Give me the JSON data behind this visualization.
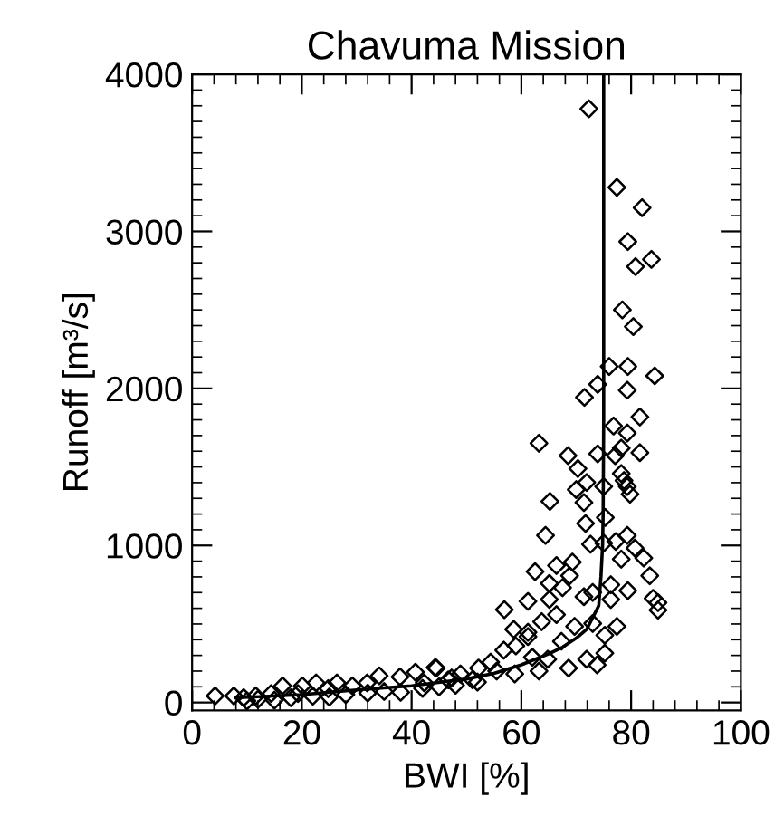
{
  "chart_data": {
    "type": "scatter",
    "title": "Chavuma Mission",
    "xlabel": "BWI [%]",
    "ylabel": "Runoff [m³/s]",
    "xlim": [
      0,
      100
    ],
    "xticks": [
      0,
      20,
      40,
      60,
      80,
      100
    ],
    "ylim": [
      -50,
      4000
    ],
    "yticks": [
      0,
      1000,
      2000,
      3000,
      4000
    ],
    "grid": false,
    "legend": false,
    "marker": "diamond",
    "series": [
      {
        "color": "#000000",
        "x": [
          4.2,
          7.6,
          9.4,
          11.6,
          14.4,
          16.5,
          19.3,
          20.1,
          22.6,
          24.8,
          26.4,
          29.2,
          31.9,
          34.1,
          37.9,
          40.7,
          44.3,
          47.3,
          10,
          12,
          15,
          18,
          22,
          25,
          28,
          32,
          35,
          38,
          42,
          45,
          48,
          52,
          54.4,
          55.5,
          52.2,
          48.9,
          44.5,
          42.3,
          46.7,
          51.1,
          58.8,
          63.2,
          56.8,
          59.0,
          62.0,
          64.8,
          68.6,
          71.9,
          75.2,
          73.8,
          67.3,
          61.2,
          75.2,
          58.6,
          61.2,
          69.7,
          73.0,
          77.4,
          63.7,
          66.4,
          56.9,
          61.2,
          65.1,
          76.3,
          84.0,
          84.9,
          84.9,
          71.4,
          73.0,
          79.4,
          65.1,
          67.5,
          76.3,
          68.8,
          83.4,
          62.5,
          66.4,
          69.3,
          78.2,
          82.3,
          80.7,
          77.2,
          79.3,
          75.0,
          72.6,
          64.4,
          75.3,
          71.7,
          71.4,
          65.2,
          79.8,
          79.3,
          75.0,
          70.0,
          78.7,
          71.9,
          78.2,
          70.3,
          77.1,
          81.6,
          73.9,
          68.5,
          78.2,
          63.2,
          79.3,
          76.8,
          81.6,
          79.3,
          71.5,
          73.9,
          84.3,
          79.4,
          76.0,
          80.4,
          78.4,
          80.8,
          83.7,
          79.4,
          82.0,
          77.4,
          72.3
        ],
        "values": [
          42,
          42,
          31,
          42,
          57,
          106,
          57,
          106,
          125,
          88,
          125,
          106,
          125,
          170,
          163,
          193,
          223,
          156,
          10,
          20,
          15,
          30,
          40,
          35,
          50,
          60,
          70,
          65,
          90,
          100,
          110,
          130,
          257,
          200,
          219,
          182,
          219,
          125,
          144,
          144,
          182,
          200,
          333,
          360,
          288,
          276,
          219,
          276,
          314,
          239,
          390,
          420,
          428,
          466,
          447,
          485,
          503,
          485,
          515,
          560,
          591,
          644,
          656,
          656,
          663,
          636,
          588,
          674,
          701,
          712,
          758,
          731,
          750,
          807,
          807,
          833,
          872,
          894,
          913,
          920,
          984,
          1025,
          1064,
          1015,
          1008,
          1064,
          1178,
          1140,
          1273,
          1280,
          1326,
          1375,
          1375,
          1356,
          1413,
          1401,
          1458,
          1489,
          1572,
          1591,
          1583,
          1572,
          1620,
          1651,
          1716,
          1761,
          1818,
          1989,
          1943,
          2026,
          2080,
          2140,
          2140,
          2394,
          2500,
          2776,
          2822,
          2935,
          3151,
          3280,
          3781
        ]
      },
      {
        "type": "line",
        "color": "#000000",
        "marker": "none",
        "line_style": "solid",
        "x": [
          8,
          20,
          30,
          40,
          50,
          55,
          59.9,
          65,
          67.5,
          70,
          71.9,
          73,
          74.1,
          74.5,
          74.8,
          74.9,
          75,
          75
        ],
        "values": [
          30,
          50,
          80,
          106,
          150,
          185,
          239,
          310,
          352,
          410,
          466,
          540,
          617,
          800,
          1000,
          1200,
          1800,
          4000
        ]
      }
    ]
  }
}
